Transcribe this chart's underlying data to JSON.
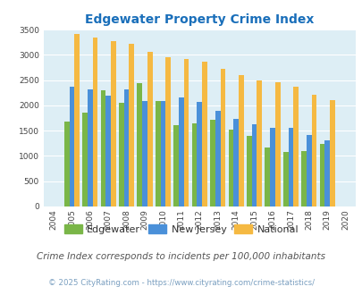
{
  "title": "Edgewater Property Crime Index",
  "years": [
    2004,
    2005,
    2006,
    2007,
    2008,
    2009,
    2010,
    2011,
    2012,
    2013,
    2014,
    2015,
    2016,
    2017,
    2018,
    2019,
    2020
  ],
  "edgewater": [
    0,
    1680,
    1850,
    2300,
    2050,
    2440,
    2080,
    1600,
    1650,
    1720,
    1520,
    1390,
    1160,
    1080,
    1100,
    1230,
    0
  ],
  "new_jersey": [
    0,
    2360,
    2310,
    2200,
    2320,
    2080,
    2080,
    2160,
    2060,
    1900,
    1730,
    1620,
    1560,
    1560,
    1410,
    1310,
    0
  ],
  "national": [
    0,
    3410,
    3340,
    3270,
    3210,
    3050,
    2960,
    2920,
    2870,
    2730,
    2600,
    2500,
    2460,
    2360,
    2210,
    2110,
    0
  ],
  "color_edgewater": "#7ab648",
  "color_nj": "#4a90d9",
  "color_national": "#f5b942",
  "bg_color": "#ddeef5",
  "title_color": "#1a6fba",
  "subtitle": "Crime Index corresponds to incidents per 100,000 inhabitants",
  "footnote": "© 2025 CityRating.com - https://www.cityrating.com/crime-statistics/",
  "subtitle_color": "#555555",
  "footnote_color": "#7a9fc0",
  "ylim": [
    0,
    3500
  ],
  "yticks": [
    0,
    500,
    1000,
    1500,
    2000,
    2500,
    3000,
    3500
  ]
}
